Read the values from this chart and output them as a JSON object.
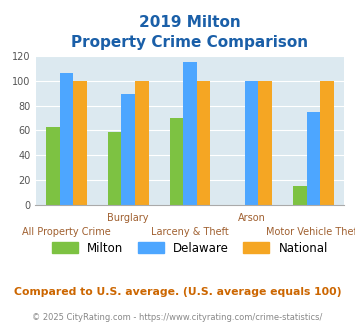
{
  "title_line1": "2019 Milton",
  "title_line2": "Property Crime Comparison",
  "categories": [
    "All Property Crime",
    "Burglary",
    "Larceny & Theft",
    "Arson",
    "Motor Vehicle Theft"
  ],
  "cat_labels_top": [
    "",
    "Burglary",
    "",
    "Arson",
    ""
  ],
  "cat_labels_bottom": [
    "All Property Crime",
    "",
    "Larceny & Theft",
    "",
    "Motor Vehicle Theft"
  ],
  "series": {
    "Milton": [
      63,
      59,
      70,
      0,
      15
    ],
    "Delaware": [
      106,
      89,
      115,
      100,
      75
    ],
    "National": [
      100,
      100,
      100,
      100,
      100
    ]
  },
  "colors": {
    "Milton": "#7dc242",
    "Delaware": "#4da6ff",
    "National": "#f5a623"
  },
  "ylim": [
    0,
    120
  ],
  "yticks": [
    0,
    20,
    40,
    60,
    80,
    100,
    120
  ],
  "bar_width": 0.22,
  "plot_bg": "#dce9f0",
  "title_color": "#1a5fa8",
  "xlabel_top_color": "#a06030",
  "xlabel_bot_color": "#a06030",
  "footer_text": "Compared to U.S. average. (U.S. average equals 100)",
  "copyright_text": "© 2025 CityRating.com - https://www.cityrating.com/crime-statistics/",
  "footer_color": "#cc6600",
  "copyright_color": "#888888"
}
